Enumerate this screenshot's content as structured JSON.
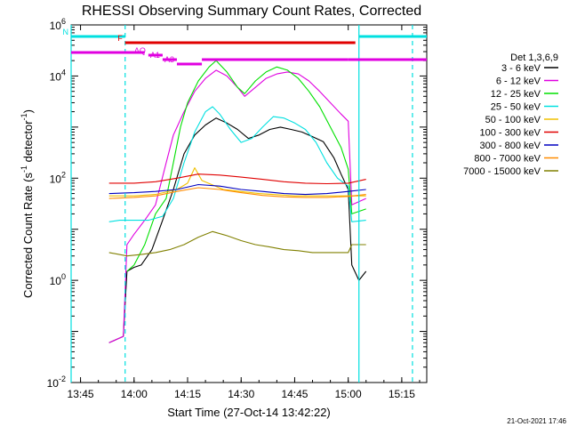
{
  "chart_data": {
    "type": "line",
    "title": "RHESSI Observing Summary Count Rates, Corrected",
    "xlabel": "Start Time (27-Oct-14 13:42:22)",
    "ylabel": "Corrected Count Rate (s⁻¹ detector⁻¹)",
    "ylabel_parts": {
      "main": "Corrected Count Rate (s",
      "exp1": "-1",
      "mid": " detector",
      "exp2": "-1",
      "end": ")"
    },
    "yscale": "log",
    "ylim": [
      0.01,
      100000
    ],
    "xlim": [
      "13:42:22",
      "15:22:00"
    ],
    "x_ticks": [
      "13:45",
      "14:00",
      "14:15",
      "14:30",
      "14:45",
      "15:00",
      "15:15"
    ],
    "y_ticks": [
      {
        "value": 0.01,
        "base": "10",
        "exp": "-2"
      },
      {
        "value": 1,
        "base": "10",
        "exp": "0"
      },
      {
        "value": 100,
        "base": "10",
        "exp": "2"
      },
      {
        "value": 10000,
        "base": "10",
        "exp": "4"
      },
      {
        "value": 1000000,
        "base": "10",
        "exp": "6"
      }
    ],
    "grid": false,
    "legend": {
      "placement": "right",
      "title": "Det 1,3,6,9",
      "entries": [
        {
          "label": "3 - 6 keV",
          "color": "#000000"
        },
        {
          "label": "6 - 12 keV",
          "color": "#e000e0"
        },
        {
          "label": "12 - 25 keV",
          "color": "#00e000"
        },
        {
          "label": "25 - 50 keV",
          "color": "#00e0e0"
        },
        {
          "label": "50 - 100 keV",
          "color": "#f0c000"
        },
        {
          "label": "100 - 300 keV",
          "color": "#e00000"
        },
        {
          "label": "300 - 800 keV",
          "color": "#0000c0"
        },
        {
          "label": "800 - 7000 keV",
          "color": "#ff8c00"
        },
        {
          "label": "7000 - 15000 keV",
          "color": "#808000"
        }
      ]
    },
    "series": [
      {
        "name": "3 - 6 keV",
        "color": "#000000",
        "points": [
          [
            "13:53:00",
            0.06
          ],
          [
            "13:57:00",
            0.08
          ],
          [
            "13:58:00",
            1.5
          ],
          [
            "14:00:00",
            1.8
          ],
          [
            "14:02:00",
            2
          ],
          [
            "14:05:00",
            4
          ],
          [
            "14:08:00",
            15
          ],
          [
            "14:11:00",
            60
          ],
          [
            "14:14:00",
            300
          ],
          [
            "14:17:00",
            700
          ],
          [
            "14:20:00",
            1100
          ],
          [
            "14:23:00",
            1500
          ],
          [
            "14:26:00",
            1200
          ],
          [
            "14:29:00",
            900
          ],
          [
            "14:32:00",
            600
          ],
          [
            "14:35:00",
            700
          ],
          [
            "14:38:00",
            900
          ],
          [
            "14:41:00",
            1000
          ],
          [
            "14:44:00",
            900
          ],
          [
            "14:47:00",
            800
          ],
          [
            "14:50:00",
            650
          ],
          [
            "14:53:00",
            520
          ],
          [
            "14:56:00",
            250
          ],
          [
            "14:58:00",
            120
          ],
          [
            "15:00:00",
            60
          ],
          [
            "15:01:00",
            2
          ],
          [
            "15:03:00",
            1
          ],
          [
            "15:05:00",
            1.5
          ]
        ]
      },
      {
        "name": "6 - 12 keV",
        "color": "#e000e0",
        "points": [
          [
            "13:53:00",
            0.06
          ],
          [
            "13:57:00",
            0.08
          ],
          [
            "13:58:00",
            5
          ],
          [
            "14:00:00",
            8
          ],
          [
            "14:03:00",
            15
          ],
          [
            "14:06:00",
            30
          ],
          [
            "14:09:00",
            200
          ],
          [
            "14:11:00",
            700
          ],
          [
            "14:14:00",
            2000
          ],
          [
            "14:17:00",
            5000
          ],
          [
            "14:20:00",
            9000
          ],
          [
            "14:23:00",
            13000
          ],
          [
            "14:26:00",
            10000
          ],
          [
            "14:29:00",
            6000
          ],
          [
            "14:31:00",
            4000
          ],
          [
            "14:34:00",
            6000
          ],
          [
            "14:37:00",
            9000
          ],
          [
            "14:40:00",
            11000
          ],
          [
            "14:43:00",
            12000
          ],
          [
            "14:46:00",
            11000
          ],
          [
            "14:49:00",
            8000
          ],
          [
            "14:52:00",
            5000
          ],
          [
            "14:55:00",
            3000
          ],
          [
            "14:58:00",
            1800
          ],
          [
            "15:00:00",
            1300
          ],
          [
            "15:01:00",
            30
          ],
          [
            "15:05:00",
            40
          ]
        ]
      },
      {
        "name": "12 - 25 keV",
        "color": "#00e000",
        "points": [
          [
            "13:58:00",
            1.5
          ],
          [
            "14:00:00",
            2
          ],
          [
            "14:03:00",
            5
          ],
          [
            "14:06:00",
            20
          ],
          [
            "14:09:00",
            40
          ],
          [
            "14:11:00",
            200
          ],
          [
            "14:13:00",
            1000
          ],
          [
            "14:15:00",
            3000
          ],
          [
            "14:18:00",
            8000
          ],
          [
            "14:21:00",
            15000
          ],
          [
            "14:23:00",
            20000
          ],
          [
            "14:26:00",
            12000
          ],
          [
            "14:29:00",
            6000
          ],
          [
            "14:31:00",
            4500
          ],
          [
            "14:34:00",
            8000
          ],
          [
            "14:37:00",
            12000
          ],
          [
            "14:40:00",
            15000
          ],
          [
            "14:43:00",
            13000
          ],
          [
            "14:46:00",
            9000
          ],
          [
            "14:49:00",
            5000
          ],
          [
            "14:52:00",
            2500
          ],
          [
            "14:55:00",
            1000
          ],
          [
            "14:58:00",
            400
          ],
          [
            "15:00:00",
            150
          ],
          [
            "15:01:00",
            20
          ],
          [
            "15:05:00",
            25
          ]
        ]
      },
      {
        "name": "25 - 50 keV",
        "color": "#00e0e0",
        "points": [
          [
            "13:53:00",
            14
          ],
          [
            "13:56:00",
            15
          ],
          [
            "14:00:00",
            15
          ],
          [
            "14:04:00",
            15
          ],
          [
            "14:08:00",
            18
          ],
          [
            "14:11:00",
            40
          ],
          [
            "14:14:00",
            200
          ],
          [
            "14:17:00",
            800
          ],
          [
            "14:20:00",
            2000
          ],
          [
            "14:22:00",
            2500
          ],
          [
            "14:24:00",
            1800
          ],
          [
            "14:27:00",
            900
          ],
          [
            "14:30:00",
            500
          ],
          [
            "14:33:00",
            600
          ],
          [
            "14:36:00",
            1000
          ],
          [
            "14:39:00",
            1600
          ],
          [
            "14:42:00",
            1500
          ],
          [
            "14:45:00",
            1200
          ],
          [
            "14:48:00",
            900
          ],
          [
            "14:51:00",
            500
          ],
          [
            "14:54:00",
            200
          ],
          [
            "14:57:00",
            100
          ],
          [
            "15:00:00",
            70
          ],
          [
            "15:01:00",
            14
          ],
          [
            "15:05:00",
            15
          ]
        ]
      },
      {
        "name": "50 - 100 keV",
        "color": "#f0c000",
        "points": [
          [
            "13:53:00",
            45
          ],
          [
            "14:00:00",
            45
          ],
          [
            "14:06:00",
            48
          ],
          [
            "14:12:00",
            60
          ],
          [
            "14:15:00",
            80
          ],
          [
            "14:17:00",
            160
          ],
          [
            "14:19:00",
            90
          ],
          [
            "14:25:00",
            60
          ],
          [
            "14:35:00",
            50
          ],
          [
            "14:45:00",
            45
          ],
          [
            "14:55:00",
            45
          ],
          [
            "15:00:00",
            45
          ],
          [
            "15:05:00",
            45
          ]
        ]
      },
      {
        "name": "100 - 300 keV",
        "color": "#e00000",
        "points": [
          [
            "13:53:00",
            80
          ],
          [
            "14:00:00",
            80
          ],
          [
            "14:06:00",
            85
          ],
          [
            "14:12:00",
            100
          ],
          [
            "14:18:00",
            120
          ],
          [
            "14:24:00",
            115
          ],
          [
            "14:30:00",
            105
          ],
          [
            "14:36:00",
            95
          ],
          [
            "14:42:00",
            85
          ],
          [
            "14:48:00",
            80
          ],
          [
            "14:54:00",
            78
          ],
          [
            "15:00:00",
            80
          ],
          [
            "15:05:00",
            95
          ]
        ]
      },
      {
        "name": "300 - 800 keV",
        "color": "#0000c0",
        "points": [
          [
            "13:53:00",
            50
          ],
          [
            "14:00:00",
            52
          ],
          [
            "14:06:00",
            55
          ],
          [
            "14:12:00",
            60
          ],
          [
            "14:18:00",
            75
          ],
          [
            "14:24:00",
            70
          ],
          [
            "14:30:00",
            60
          ],
          [
            "14:36:00",
            55
          ],
          [
            "14:42:00",
            50
          ],
          [
            "14:48:00",
            48
          ],
          [
            "14:54:00",
            50
          ],
          [
            "15:00:00",
            55
          ],
          [
            "15:05:00",
            60
          ]
        ]
      },
      {
        "name": "800 - 7000 keV",
        "color": "#ff8c00",
        "points": [
          [
            "13:53:00",
            40
          ],
          [
            "14:00:00",
            42
          ],
          [
            "14:06:00",
            45
          ],
          [
            "14:12:00",
            55
          ],
          [
            "14:18:00",
            65
          ],
          [
            "14:24:00",
            60
          ],
          [
            "14:30:00",
            52
          ],
          [
            "14:36:00",
            46
          ],
          [
            "14:42:00",
            43
          ],
          [
            "14:48:00",
            42
          ],
          [
            "14:54:00",
            42
          ],
          [
            "15:00:00",
            44
          ],
          [
            "15:05:00",
            48
          ]
        ]
      },
      {
        "name": "7000 - 15000 keV",
        "color": "#808000",
        "points": [
          [
            "13:53:00",
            3.5
          ],
          [
            "13:58:00",
            3
          ],
          [
            "14:02:00",
            3.2
          ],
          [
            "14:06:00",
            3.5
          ],
          [
            "14:10:00",
            4
          ],
          [
            "14:14:00",
            5
          ],
          [
            "14:18:00",
            7
          ],
          [
            "14:22:00",
            9
          ],
          [
            "14:26:00",
            7.5
          ],
          [
            "14:30:00",
            6
          ],
          [
            "14:34:00",
            5
          ],
          [
            "14:38:00",
            4.5
          ],
          [
            "14:42:00",
            4
          ],
          [
            "14:46:00",
            3.8
          ],
          [
            "14:50:00",
            3.5
          ],
          [
            "14:54:00",
            3.5
          ],
          [
            "14:58:00",
            3.5
          ],
          [
            "15:00:00",
            3.5
          ],
          [
            "15:01:00",
            5
          ],
          [
            "15:05:00",
            5
          ]
        ]
      }
    ],
    "markers": {
      "segments": [
        {
          "label": "N",
          "color": "#00e0e0",
          "from": "13:42:22",
          "to": "13:57:30",
          "level": 1
        },
        {
          "label": "",
          "color": "#00e0e0",
          "from": "15:03:00",
          "to": "15:22:00",
          "level": 1
        },
        {
          "label": "F",
          "color": "#e00000",
          "from": "13:57:30",
          "to": "15:02:00",
          "level": 2
        },
        {
          "label": "",
          "color": "#e000e0",
          "from": "13:42:22",
          "to": "14:03:00",
          "level": 3
        },
        {
          "label": "AQ",
          "color": "#e000e0",
          "from": "14:04:00",
          "to": "14:08:00",
          "level": 4
        },
        {
          "label": "A1",
          "color": "#e000e0",
          "from": "14:08:00",
          "to": "14:12:00",
          "level": 5
        },
        {
          "label": "A3",
          "color": "#e000e0",
          "from": "14:12:00",
          "to": "14:19:00",
          "level": 6
        },
        {
          "label": "",
          "color": "#e000e0",
          "from": "14:19:00",
          "to": "15:00:00",
          "level": 5
        },
        {
          "label": "",
          "color": "#e000e0",
          "from": "15:00:00",
          "to": "15:22:00",
          "level": 5
        }
      ],
      "vlines": [
        {
          "time": "13:57:30",
          "color": "#00e0e0",
          "style": "dashed"
        },
        {
          "time": "15:03:00",
          "color": "#00e0e0",
          "style": "solid"
        },
        {
          "time": "15:18:00",
          "color": "#00e0e0",
          "style": "dashed"
        },
        {
          "time": "13:42:22",
          "color": "#00e0e0",
          "style": "solid"
        }
      ]
    }
  },
  "footer": {
    "timestamp": "21-Oct-2021 17:46"
  }
}
